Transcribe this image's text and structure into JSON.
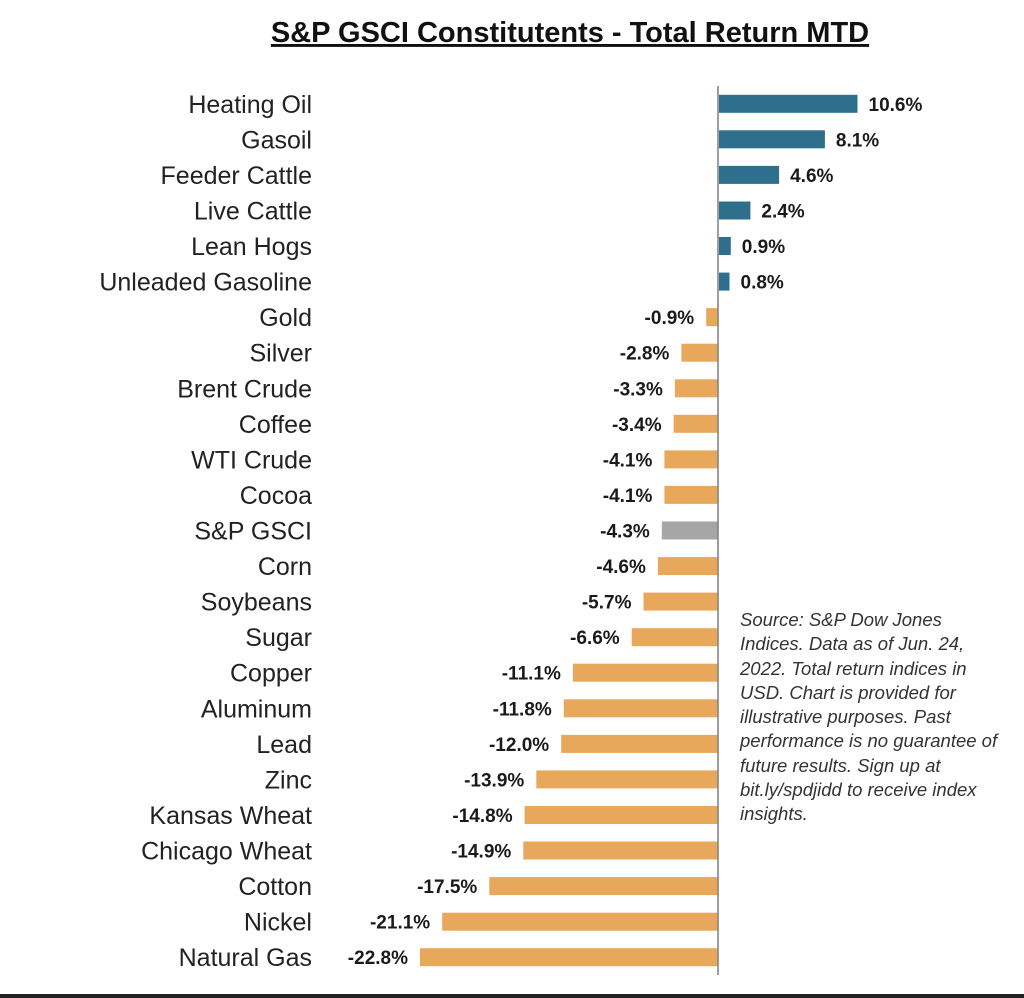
{
  "chart_data": {
    "type": "bar",
    "orientation": "horizontal",
    "title": "S&P GSCI Constitutents - Total Return MTD",
    "categories": [
      "Heating Oil",
      "Gasoil",
      "Feeder Cattle",
      "Live Cattle",
      "Lean Hogs",
      "Unleaded Gasoline",
      "Gold",
      "Silver",
      "Brent Crude",
      "Coffee",
      "WTI Crude",
      "Cocoa",
      "S&P GSCI",
      "Corn",
      "Soybeans",
      "Sugar",
      "Copper",
      "Aluminum",
      "Lead",
      "Zinc",
      "Kansas Wheat",
      "Chicago Wheat",
      "Cotton",
      "Nickel",
      "Natural Gas"
    ],
    "values": [
      10.6,
      8.1,
      4.6,
      2.4,
      0.9,
      0.8,
      -0.9,
      -2.8,
      -3.3,
      -3.4,
      -4.1,
      -4.1,
      -4.3,
      -4.6,
      -5.7,
      -6.6,
      -11.1,
      -11.8,
      -12.0,
      -13.9,
      -14.8,
      -14.9,
      -17.5,
      -21.1,
      -22.8
    ],
    "value_labels": [
      "10.6%",
      "8.1%",
      "4.6%",
      "2.4%",
      "0.9%",
      "0.8%",
      "-0.9%",
      "-2.8%",
      "-3.3%",
      "-3.4%",
      "-4.1%",
      "-4.1%",
      "-4.3%",
      "-4.6%",
      "-5.7%",
      "-6.6%",
      "-11.1%",
      "-11.8%",
      "-12.0%",
      "-13.9%",
      "-14.8%",
      "-14.9%",
      "-17.5%",
      "-21.1%",
      "-22.8%"
    ],
    "unit": "%",
    "xlim": [
      -23,
      11
    ],
    "grid": false,
    "colors": {
      "positive": "#2e6f8e",
      "negative": "#e8a85b",
      "index": "#a6a6a6",
      "axis": "#7f7f7f"
    },
    "highlight_category": "S&P GSCI"
  },
  "source_note": "Source: S&P Dow Jones Indices. Data as of Jun. 24, 2022. Total return indices in USD. Chart is provided for illustrative purposes. Past performance is no guarantee of future results. Sign up at bit.ly/spdjidd to receive index insights."
}
